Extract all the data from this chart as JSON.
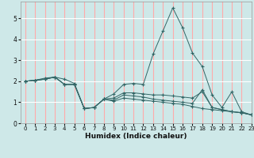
{
  "title": "",
  "xlabel": "Humidex (Indice chaleur)",
  "bg_color": "#cee8e8",
  "plot_bg": "#cee8e8",
  "line_color": "#336666",
  "grid_color_h": "#ffffff",
  "grid_color_v": "#ffaaaa",
  "xlim": [
    -0.5,
    23
  ],
  "ylim": [
    0,
    5.8
  ],
  "yticks": [
    0,
    1,
    2,
    3,
    4,
    5
  ],
  "xticks": [
    0,
    1,
    2,
    3,
    4,
    5,
    6,
    7,
    8,
    9,
    10,
    11,
    12,
    13,
    14,
    15,
    16,
    17,
    18,
    19,
    20,
    21,
    22,
    23
  ],
  "series": [
    {
      "x": [
        0,
        1,
        2,
        3,
        4,
        5,
        6,
        7,
        8,
        9,
        10,
        11,
        12,
        13,
        14,
        15,
        16,
        17,
        18,
        19,
        20,
        21,
        22,
        23
      ],
      "y": [
        2.0,
        2.05,
        2.15,
        2.2,
        2.1,
        1.9,
        0.7,
        0.75,
        1.15,
        1.4,
        1.85,
        1.9,
        1.85,
        3.3,
        4.4,
        5.5,
        4.55,
        3.35,
        2.7,
        1.35,
        0.75,
        1.5,
        0.55,
        0.4
      ]
    },
    {
      "x": [
        0,
        1,
        2,
        3,
        4,
        5,
        6,
        7,
        8,
        9,
        10,
        11,
        12,
        13,
        14,
        15,
        16,
        17,
        18,
        19,
        20,
        21,
        22,
        23
      ],
      "y": [
        2.0,
        2.05,
        2.1,
        2.2,
        1.85,
        1.85,
        0.7,
        0.75,
        1.15,
        1.05,
        1.2,
        1.15,
        1.1,
        1.05,
        1.0,
        0.95,
        0.9,
        0.8,
        0.7,
        0.65,
        0.6,
        0.55,
        0.5,
        0.4
      ]
    },
    {
      "x": [
        0,
        1,
        2,
        3,
        4,
        5,
        6,
        7,
        8,
        9,
        10,
        11,
        12,
        13,
        14,
        15,
        16,
        17,
        18,
        19,
        20,
        21,
        22,
        23
      ],
      "y": [
        2.0,
        2.05,
        2.1,
        2.2,
        1.85,
        1.85,
        0.7,
        0.75,
        1.15,
        1.2,
        1.45,
        1.45,
        1.4,
        1.35,
        1.35,
        1.3,
        1.25,
        1.2,
        1.5,
        0.75,
        0.65,
        0.55,
        0.5,
        0.4
      ]
    },
    {
      "x": [
        0,
        1,
        2,
        3,
        4,
        5,
        6,
        7,
        8,
        9,
        10,
        11,
        12,
        13,
        14,
        15,
        16,
        17,
        18,
        19,
        20,
        21,
        22,
        23
      ],
      "y": [
        2.0,
        2.05,
        2.1,
        2.2,
        1.85,
        1.85,
        0.7,
        0.75,
        1.15,
        1.1,
        1.35,
        1.3,
        1.25,
        1.15,
        1.1,
        1.05,
        1.0,
        0.95,
        1.6,
        0.75,
        0.65,
        0.55,
        0.5,
        0.4
      ]
    }
  ]
}
